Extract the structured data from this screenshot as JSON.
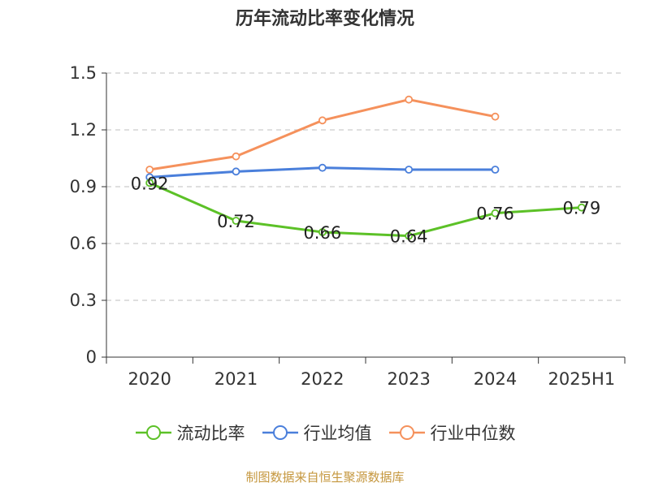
{
  "chart_data": {
    "type": "line",
    "title": "历年流动比率变化情况",
    "xlabel": "",
    "ylabel": "",
    "categories": [
      "2020",
      "2021",
      "2022",
      "2023",
      "2024",
      "2025H1"
    ],
    "ylim": [
      0,
      1.5
    ],
    "yticks": [
      "0",
      "0.3",
      "0.6",
      "0.9",
      "1.2",
      "1.5"
    ],
    "ytick_values": [
      0,
      0.3,
      0.6,
      0.9,
      1.2,
      1.5
    ],
    "grid": true,
    "legend_position": "bottom",
    "series": [
      {
        "name": "流动比率",
        "color": "#5cc127",
        "values": [
          0.92,
          0.72,
          0.66,
          0.64,
          0.76,
          0.79
        ],
        "labels": [
          "0.92",
          "0.72",
          "0.66",
          "0.64",
          "0.76",
          "0.79"
        ]
      },
      {
        "name": "行业均值",
        "color": "#4a7fdb",
        "values": [
          0.95,
          0.98,
          1.0,
          0.99,
          0.99,
          null
        ],
        "labels": []
      },
      {
        "name": "行业中位数",
        "color": "#f5915c",
        "values": [
          0.99,
          1.06,
          1.25,
          1.36,
          1.27,
          null
        ],
        "labels": []
      }
    ]
  },
  "footer": {
    "source": "制图数据来自恒生聚源数据库"
  }
}
